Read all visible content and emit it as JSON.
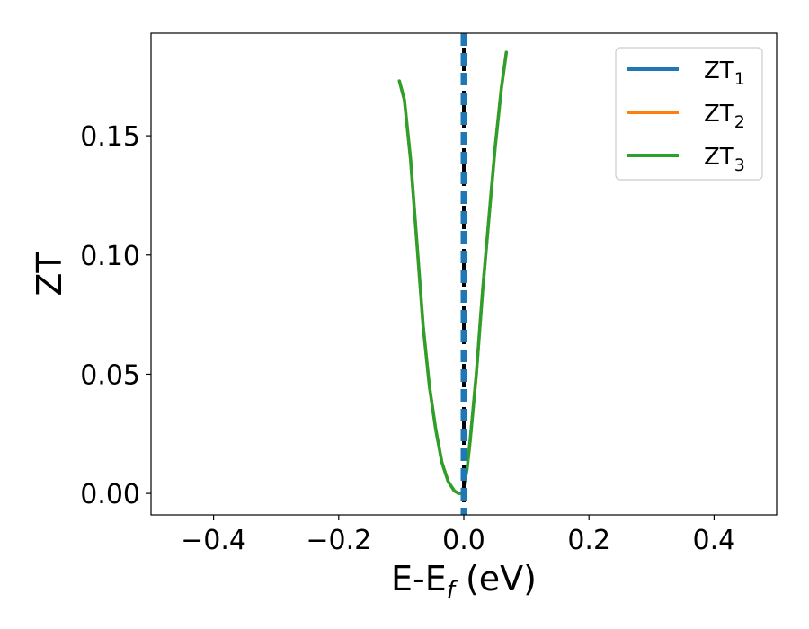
{
  "chart_data": {
    "type": "line",
    "xlabel": "E-E",
    "xlabel_subscript": "f",
    "xlabel_unit": " (eV)",
    "ylabel": "ZT",
    "xlim": [
      -0.5,
      0.5
    ],
    "ylim": [
      -0.009,
      0.193
    ],
    "xticks": [
      -0.4,
      -0.2,
      0.0,
      0.2,
      0.4
    ],
    "xtick_labels": [
      "−0.4",
      "−0.2",
      "0.0",
      "0.2",
      "0.4"
    ],
    "yticks": [
      0.0,
      0.05,
      0.1,
      0.15
    ],
    "ytick_labels": [
      "0.00",
      "0.05",
      "0.10",
      "0.15"
    ],
    "grid": false,
    "legend_position": "upper-right",
    "vertical_lines": [
      {
        "x": 0.0,
        "color": "#000000",
        "style": "dashed",
        "role": "fermi-level"
      },
      {
        "x": 0.0,
        "color": "#1f77b4",
        "style": "dashed",
        "role": "ZT1 series (vertical)"
      }
    ],
    "series": [
      {
        "name": "ZT",
        "subscript": "1",
        "color": "#1f77b4",
        "x": [
          0.0,
          0.0
        ],
        "y": [
          -0.009,
          0.193
        ]
      },
      {
        "name": "ZT",
        "subscript": "2",
        "color": "#ff7f0e",
        "x": [
          -0.103,
          -0.095,
          -0.085,
          -0.075,
          -0.065,
          -0.055,
          -0.045,
          -0.035,
          -0.025,
          -0.015,
          -0.008,
          -0.003,
          0.0,
          0.005,
          0.01,
          0.02,
          0.03,
          0.04,
          0.05,
          0.06,
          0.068
        ],
        "y": [
          0.173,
          0.165,
          0.14,
          0.105,
          0.07,
          0.045,
          0.027,
          0.013,
          0.005,
          0.001,
          0.0,
          0.0,
          0.003,
          0.01,
          0.022,
          0.05,
          0.085,
          0.115,
          0.145,
          0.17,
          0.185
        ]
      },
      {
        "name": "ZT",
        "subscript": "3",
        "color": "#2ca02c",
        "x": [
          -0.103,
          -0.095,
          -0.085,
          -0.075,
          -0.065,
          -0.055,
          -0.045,
          -0.035,
          -0.025,
          -0.015,
          -0.008,
          -0.003,
          0.0,
          0.005,
          0.01,
          0.02,
          0.03,
          0.04,
          0.05,
          0.06,
          0.068
        ],
        "y": [
          0.173,
          0.165,
          0.14,
          0.105,
          0.07,
          0.045,
          0.027,
          0.013,
          0.005,
          0.001,
          0.0,
          0.0,
          0.003,
          0.01,
          0.022,
          0.05,
          0.085,
          0.115,
          0.145,
          0.17,
          0.185
        ]
      }
    ]
  }
}
